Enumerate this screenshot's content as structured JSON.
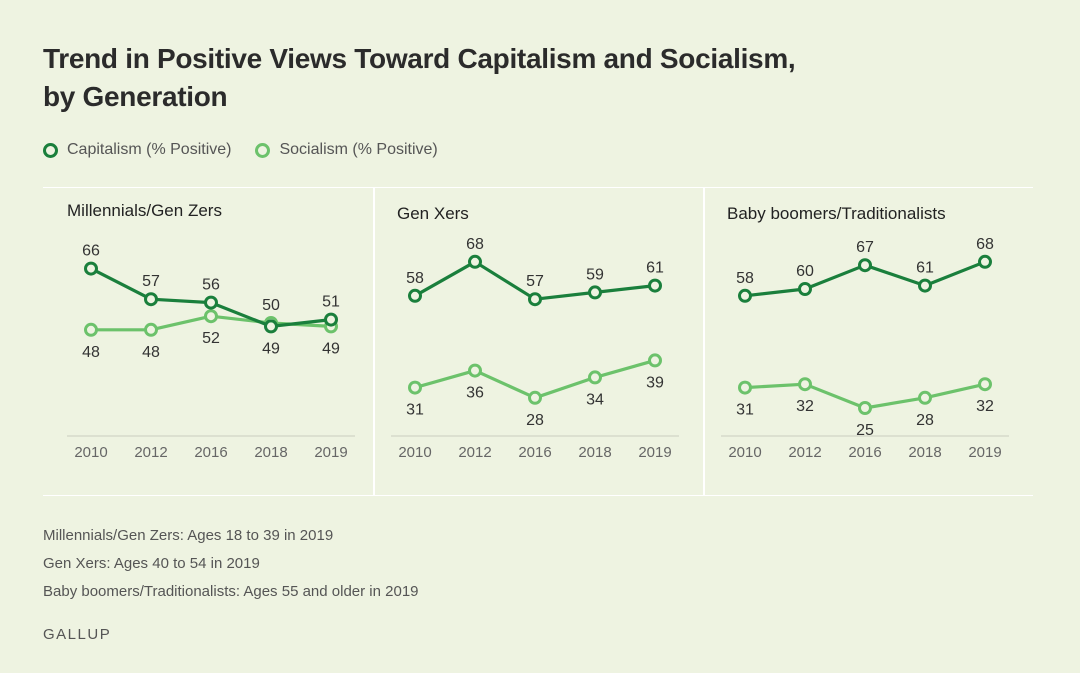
{
  "title": "Trend in Positive Views Toward Capitalism and Socialism, by Generation",
  "legend": {
    "capitalism": "Capitalism (% Positive)",
    "socialism": "Socialism (% Positive)"
  },
  "colors": {
    "capitalism": "#1a7f3c",
    "socialism": "#6cc26b",
    "background": "#eef3e1"
  },
  "chart_data": [
    {
      "type": "line",
      "title": "Millennials/Gen Zers",
      "categories": [
        "2010",
        "2012",
        "2016",
        "2018",
        "2019"
      ],
      "series": [
        {
          "name": "Capitalism (% Positive)",
          "values": [
            66,
            57,
            56,
            49,
            51
          ]
        },
        {
          "name": "Socialism (% Positive)",
          "values": [
            48,
            48,
            52,
            50,
            49
          ]
        }
      ]
    },
    {
      "type": "line",
      "title": "Gen Xers",
      "categories": [
        "2010",
        "2012",
        "2016",
        "2018",
        "2019"
      ],
      "series": [
        {
          "name": "Capitalism (% Positive)",
          "values": [
            58,
            68,
            57,
            59,
            61
          ]
        },
        {
          "name": "Socialism (% Positive)",
          "values": [
            31,
            36,
            28,
            34,
            39
          ]
        }
      ]
    },
    {
      "type": "line",
      "title": "Baby boomers/Traditionalists",
      "categories": [
        "2010",
        "2012",
        "2016",
        "2018",
        "2019"
      ],
      "series": [
        {
          "name": "Capitalism (% Positive)",
          "values": [
            58,
            60,
            67,
            61,
            68
          ]
        },
        {
          "name": "Socialism (% Positive)",
          "values": [
            31,
            32,
            25,
            28,
            32
          ]
        }
      ]
    }
  ],
  "notes": [
    "Millennials/Gen Zers: Ages 18 to 39 in 2019",
    "Gen Xers: Ages 40 to 54 in 2019",
    "Baby boomers/Traditionalists: Ages 55 and older in 2019"
  ],
  "source": "GALLUP"
}
